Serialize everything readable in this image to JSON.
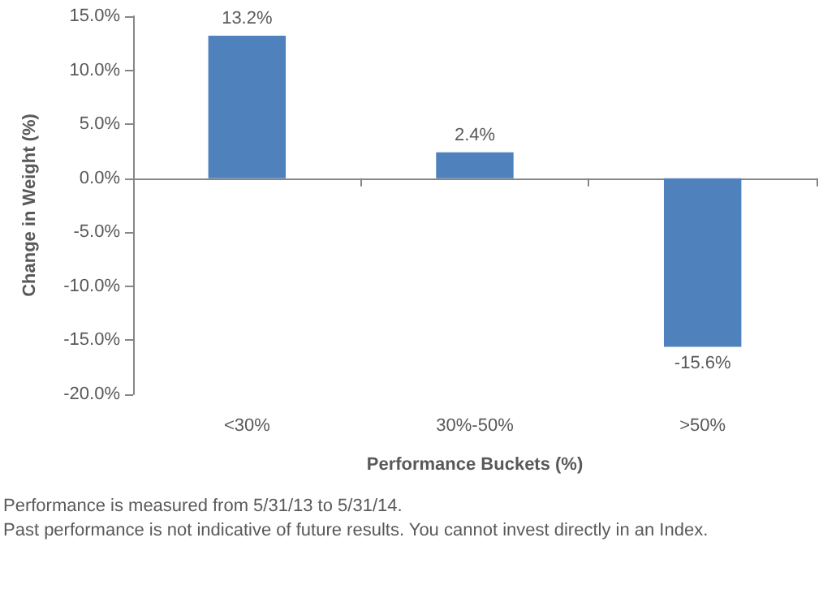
{
  "chart_data": {
    "type": "bar",
    "xlabel": "Performance Buckets (%)",
    "ylabel": "Change in Weight (%)",
    "categories": [
      "<30%",
      "30%-50%",
      ">50%"
    ],
    "values": [
      13.2,
      2.4,
      -15.6
    ],
    "value_labels": [
      "13.2%",
      "2.4%",
      "-15.6%"
    ],
    "color": "#4f81bd",
    "ylim": [
      -20,
      15
    ],
    "yticks": [
      {
        "value": -20,
        "label": "-20.0%"
      },
      {
        "value": -15,
        "label": "-15.0%"
      },
      {
        "value": -10,
        "label": "-10.0%"
      },
      {
        "value": -5,
        "label": "-5.0%"
      },
      {
        "value": 0,
        "label": "0.0%"
      },
      {
        "value": 5,
        "label": "5.0%"
      },
      {
        "value": 10,
        "label": "10.0%"
      },
      {
        "value": 15,
        "label": "15.0%"
      }
    ],
    "annotations": [
      "Performance is measured from 5/31/13 to 5/31/14.",
      "Past performance is not indicative of future results. You cannot invest directly in an Index."
    ]
  }
}
